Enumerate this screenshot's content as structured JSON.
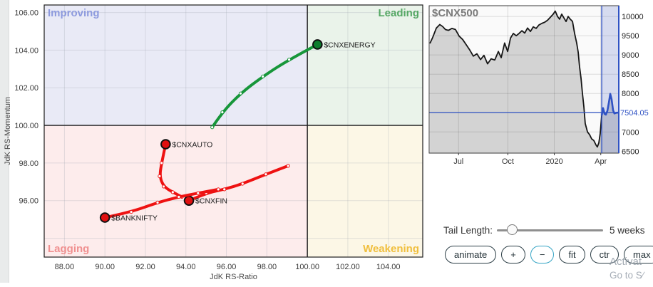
{
  "controls": {
    "tail_label": "Tail Length:",
    "tail_value": "5 weeks",
    "slider_pos": 0.15,
    "buttons": [
      {
        "label": "animate",
        "active": false
      },
      {
        "label": "+",
        "active": false
      },
      {
        "label": "−",
        "active": true
      },
      {
        "label": "fit",
        "active": false
      },
      {
        "label": "ctr",
        "active": false
      },
      {
        "label": "max",
        "active": false
      }
    ]
  },
  "watermark": {
    "line1": "Activat",
    "line2": "Go to S∕"
  },
  "chart_data": [
    {
      "type": "scatter",
      "name": "rrg",
      "xlabel": "JdK RS-Ratio",
      "ylabel": "JdK RS-Momentum",
      "xlim": [
        87.0,
        105.7
      ],
      "ylim": [
        93.0,
        106.4
      ],
      "center": [
        100,
        100
      ],
      "x_ticks": [
        {
          "v": 88,
          "label": "88.00"
        },
        {
          "v": 90,
          "label": "90.00"
        },
        {
          "v": 92,
          "label": "92.00"
        },
        {
          "v": 94,
          "label": "94.00"
        },
        {
          "v": 96,
          "label": "96.00"
        },
        {
          "v": 98,
          "label": "98.00"
        },
        {
          "v": 100,
          "label": "100.00"
        },
        {
          "v": 102,
          "label": "102.00"
        },
        {
          "v": 104,
          "label": "104.00"
        }
      ],
      "y_ticks": [
        {
          "v": 96,
          "label": "96.00"
        },
        {
          "v": 98,
          "label": "98.00"
        },
        {
          "v": 100,
          "label": "100.00"
        },
        {
          "v": 102,
          "label": "102.00"
        },
        {
          "v": 104,
          "label": "104.00"
        },
        {
          "v": 106,
          "label": "106.00"
        }
      ],
      "y_grid": [
        94,
        96,
        98,
        100,
        102,
        104,
        106
      ],
      "x_grid": [
        88,
        90,
        92,
        94,
        96,
        98,
        100,
        102,
        104
      ],
      "quadrants": [
        {
          "name": "Improving",
          "position": "top-left",
          "fill": "#e9eaf6",
          "label_color": "#8d9ade"
        },
        {
          "name": "Leading",
          "position": "top-right",
          "fill": "#eaf3ea",
          "label_color": "#56a865"
        },
        {
          "name": "Lagging",
          "position": "bottom-left",
          "fill": "#fdecec",
          "label_color": "#f09090"
        },
        {
          "name": "Weakening",
          "position": "bottom-right",
          "fill": "#fcf7e6",
          "label_color": "#f0bf3e"
        }
      ],
      "series": [
        {
          "name": "$CNXENERGY",
          "color": "#17963a",
          "marker_fill": "#0e7e2e",
          "points": [
            [
              95.3,
              99.9
            ],
            [
              95.8,
              100.7
            ],
            [
              96.7,
              101.7
            ],
            [
              97.8,
              102.6
            ],
            [
              99.1,
              103.5
            ],
            [
              100.5,
              104.3
            ]
          ]
        },
        {
          "name": "$CNXAUTO",
          "color": "#ee1212",
          "marker_fill": "#e01010",
          "points": [
            [
              93.8,
              96.2
            ],
            [
              93.35,
              96.45
            ],
            [
              92.9,
              96.75
            ],
            [
              92.7,
              97.3
            ],
            [
              92.8,
              98.0
            ],
            [
              93.0,
              99.0
            ]
          ]
        },
        {
          "name": "$CNXFIN",
          "color": "#ee1212",
          "marker_fill": "#e01010",
          "points": [
            [
              99.05,
              97.85
            ],
            [
              97.95,
              97.4
            ],
            [
              96.8,
              96.9
            ],
            [
              95.9,
              96.6
            ],
            [
              95.0,
              96.4
            ],
            [
              94.15,
              96.0
            ]
          ]
        },
        {
          "name": "$BANKNIFTY",
          "color": "#ee1212",
          "marker_fill": "#e01010",
          "points": [
            [
              95.6,
              96.6
            ],
            [
              94.6,
              96.4
            ],
            [
              93.65,
              96.2
            ],
            [
              92.6,
              95.9
            ],
            [
              91.3,
              95.4
            ],
            [
              90.0,
              95.1
            ]
          ]
        }
      ]
    },
    {
      "type": "area",
      "title": "$CNX500",
      "ylim": [
        6450,
        10280
      ],
      "y_ticks": [
        {
          "v": 10000,
          "label": "10000"
        },
        {
          "v": 9500,
          "label": "9500"
        },
        {
          "v": 9000,
          "label": "9000"
        },
        {
          "v": 8500,
          "label": "8500"
        },
        {
          "v": 8000,
          "label": "8000"
        },
        {
          "v": 7000,
          "label": "7000"
        },
        {
          "v": 6500,
          "label": "6500"
        }
      ],
      "y_grid": [
        7000,
        7500,
        8000,
        8500,
        9000,
        9500,
        10000
      ],
      "current": {
        "v": 7504.05,
        "label": "7504.05"
      },
      "x_ticks": [
        {
          "label": "Jul",
          "pos": 0.155
        },
        {
          "label": "Oct",
          "pos": 0.415
        },
        {
          "label": "2020",
          "pos": 0.66
        },
        {
          "label": "Apr",
          "pos": 0.905
        }
      ],
      "band_start": 0.91,
      "points": [
        [
          0.004,
          9300
        ],
        [
          0.019,
          9460
        ],
        [
          0.038,
          9700
        ],
        [
          0.056,
          9790
        ],
        [
          0.071,
          9740
        ],
        [
          0.086,
          9660
        ],
        [
          0.102,
          9640
        ],
        [
          0.12,
          9690
        ],
        [
          0.139,
          9660
        ],
        [
          0.158,
          9490
        ],
        [
          0.177,
          9400
        ],
        [
          0.195,
          9270
        ],
        [
          0.214,
          9130
        ],
        [
          0.233,
          8970
        ],
        [
          0.252,
          9030
        ],
        [
          0.271,
          8880
        ],
        [
          0.289,
          8990
        ],
        [
          0.308,
          8770
        ],
        [
          0.327,
          8900
        ],
        [
          0.346,
          8870
        ],
        [
          0.365,
          9090
        ],
        [
          0.38,
          8930
        ],
        [
          0.398,
          9310
        ],
        [
          0.414,
          9090
        ],
        [
          0.429,
          9440
        ],
        [
          0.444,
          9560
        ],
        [
          0.459,
          9500
        ],
        [
          0.474,
          9560
        ],
        [
          0.489,
          9630
        ],
        [
          0.504,
          9570
        ],
        [
          0.519,
          9700
        ],
        [
          0.534,
          9610
        ],
        [
          0.549,
          9730
        ],
        [
          0.564,
          9690
        ],
        [
          0.579,
          9780
        ],
        [
          0.594,
          9820
        ],
        [
          0.609,
          9850
        ],
        [
          0.624,
          9900
        ],
        [
          0.639,
          9980
        ],
        [
          0.654,
          10060
        ],
        [
          0.665,
          10140
        ],
        [
          0.677,
          10000
        ],
        [
          0.688,
          9930
        ],
        [
          0.699,
          10060
        ],
        [
          0.711,
          9960
        ],
        [
          0.722,
          9870
        ],
        [
          0.733,
          10000
        ],
        [
          0.744,
          9930
        ],
        [
          0.756,
          9870
        ],
        [
          0.767,
          9560
        ],
        [
          0.778,
          9310
        ],
        [
          0.786,
          9070
        ],
        [
          0.793,
          8700
        ],
        [
          0.801,
          8390
        ],
        [
          0.808,
          8020
        ],
        [
          0.816,
          7650
        ],
        [
          0.823,
          7220
        ],
        [
          0.835,
          7000
        ],
        [
          0.846,
          6930
        ],
        [
          0.857,
          6820
        ],
        [
          0.868,
          6780
        ],
        [
          0.88,
          6660
        ],
        [
          0.887,
          6610
        ],
        [
          0.895,
          6720
        ],
        [
          0.902,
          6960
        ],
        [
          0.91,
          7430
        ]
      ],
      "recent_points": [
        [
          0.91,
          7430
        ],
        [
          0.917,
          7620
        ],
        [
          0.925,
          7470
        ],
        [
          0.932,
          7450
        ],
        [
          0.94,
          7550
        ],
        [
          0.947,
          7740
        ],
        [
          0.955,
          7990
        ],
        [
          0.962,
          7850
        ],
        [
          0.97,
          7560
        ],
        [
          0.977,
          7480
        ],
        [
          0.988,
          7500
        ],
        [
          1.0,
          7504
        ]
      ],
      "colors": {
        "area": "#d3d3d3",
        "line": "#161616",
        "blue": "#2f52c4",
        "band": "rgba(86,110,200,0.22)"
      }
    }
  ]
}
